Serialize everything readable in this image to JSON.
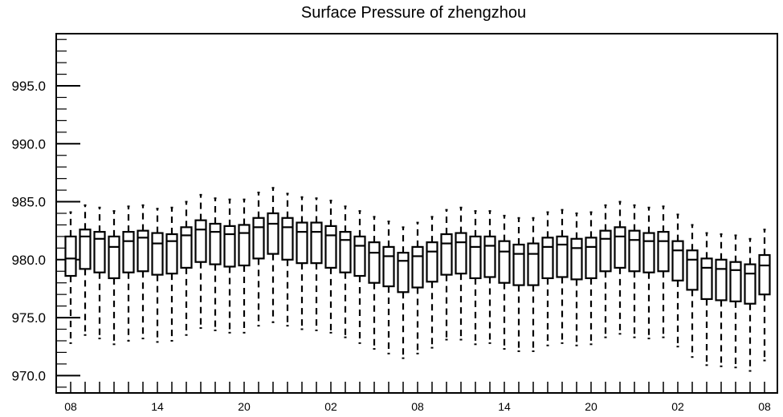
{
  "chart_data": {
    "type": "boxplot",
    "title": "Surface Pressure of zhengzhou",
    "xlabel": "",
    "ylabel": "",
    "ylim": [
      968.5,
      999.5
    ],
    "yticks": [
      970.0,
      975.0,
      980.0,
      985.0,
      990.0,
      995.0
    ],
    "ytick_labels": [
      "970.0",
      "975.0",
      "980.0",
      "985.0",
      "990.0",
      "995.0"
    ],
    "xtick_labels": [
      "08",
      "14",
      "20",
      "02",
      "08",
      "14",
      "20",
      "02",
      "08"
    ],
    "xtick_positions": [
      0,
      6,
      12,
      18,
      24,
      30,
      36,
      42,
      48
    ],
    "boxes": [
      {
        "x": 0,
        "low": 972.8,
        "q1": 978.6,
        "median": 980.1,
        "q3": 982.0,
        "high": 984.1
      },
      {
        "x": 1,
        "low": 973.5,
        "q1": 979.2,
        "median": 982.0,
        "q3": 982.6,
        "high": 984.7
      },
      {
        "x": 2,
        "low": 973.2,
        "q1": 978.9,
        "median": 981.8,
        "q3": 982.4,
        "high": 984.5
      },
      {
        "x": 3,
        "low": 972.7,
        "q1": 978.4,
        "median": 981.1,
        "q3": 982.0,
        "high": 984.2
      },
      {
        "x": 4,
        "low": 973.0,
        "q1": 978.9,
        "median": 981.6,
        "q3": 982.4,
        "high": 984.6
      },
      {
        "x": 5,
        "low": 973.2,
        "q1": 979.0,
        "median": 981.9,
        "q3": 982.5,
        "high": 984.7
      },
      {
        "x": 6,
        "low": 972.9,
        "q1": 978.7,
        "median": 981.4,
        "q3": 982.3,
        "high": 984.4
      },
      {
        "x": 7,
        "low": 973.0,
        "q1": 978.8,
        "median": 981.6,
        "q3": 982.2,
        "high": 984.5
      },
      {
        "x": 8,
        "low": 973.5,
        "q1": 979.3,
        "median": 982.1,
        "q3": 982.8,
        "high": 985.0
      },
      {
        "x": 9,
        "low": 974.1,
        "q1": 979.8,
        "median": 982.6,
        "q3": 983.4,
        "high": 985.6
      },
      {
        "x": 10,
        "low": 973.9,
        "q1": 979.6,
        "median": 982.4,
        "q3": 983.1,
        "high": 985.3
      },
      {
        "x": 11,
        "low": 973.7,
        "q1": 979.4,
        "median": 982.2,
        "q3": 982.9,
        "high": 985.2
      },
      {
        "x": 12,
        "low": 973.7,
        "q1": 979.5,
        "median": 982.3,
        "q3": 983.0,
        "high": 985.2
      },
      {
        "x": 13,
        "low": 974.3,
        "q1": 980.1,
        "median": 982.8,
        "q3": 983.6,
        "high": 985.8
      },
      {
        "x": 14,
        "low": 974.6,
        "q1": 980.5,
        "median": 983.1,
        "q3": 984.0,
        "high": 986.2
      },
      {
        "x": 15,
        "low": 974.3,
        "q1": 980.0,
        "median": 982.8,
        "q3": 983.6,
        "high": 985.7
      },
      {
        "x": 16,
        "low": 974.0,
        "q1": 979.7,
        "median": 982.4,
        "q3": 983.2,
        "high": 985.4
      },
      {
        "x": 17,
        "low": 973.9,
        "q1": 979.7,
        "median": 982.4,
        "q3": 983.2,
        "high": 985.3
      },
      {
        "x": 18,
        "low": 973.7,
        "q1": 979.3,
        "median": 982.1,
        "q3": 982.9,
        "high": 985.1
      },
      {
        "x": 19,
        "low": 973.3,
        "q1": 978.9,
        "median": 981.7,
        "q3": 982.4,
        "high": 984.6
      },
      {
        "x": 20,
        "low": 972.8,
        "q1": 978.6,
        "median": 981.2,
        "q3": 982.0,
        "high": 984.2
      },
      {
        "x": 21,
        "low": 972.3,
        "q1": 978.0,
        "median": 980.6,
        "q3": 981.5,
        "high": 983.7
      },
      {
        "x": 22,
        "low": 971.9,
        "q1": 977.7,
        "median": 980.3,
        "q3": 981.1,
        "high": 983.3
      },
      {
        "x": 23,
        "low": 971.5,
        "q1": 977.2,
        "median": 979.9,
        "q3": 980.6,
        "high": 982.8
      },
      {
        "x": 24,
        "low": 971.9,
        "q1": 977.6,
        "median": 980.3,
        "q3": 981.1,
        "high": 983.2
      },
      {
        "x": 25,
        "low": 972.4,
        "q1": 978.1,
        "median": 980.7,
        "q3": 981.5,
        "high": 983.7
      },
      {
        "x": 26,
        "low": 973.1,
        "q1": 978.7,
        "median": 981.4,
        "q3": 982.2,
        "high": 984.3
      },
      {
        "x": 27,
        "low": 973.1,
        "q1": 978.8,
        "median": 981.5,
        "q3": 982.3,
        "high": 984.5
      },
      {
        "x": 28,
        "low": 972.7,
        "q1": 978.4,
        "median": 981.1,
        "q3": 982.0,
        "high": 984.2
      },
      {
        "x": 29,
        "low": 972.8,
        "q1": 978.5,
        "median": 981.2,
        "q3": 982.0,
        "high": 984.2
      },
      {
        "x": 30,
        "low": 972.3,
        "q1": 978.0,
        "median": 980.7,
        "q3": 981.6,
        "high": 983.8
      },
      {
        "x": 31,
        "low": 972.1,
        "q1": 977.8,
        "median": 980.5,
        "q3": 981.3,
        "high": 983.6
      },
      {
        "x": 32,
        "low": 972.1,
        "q1": 977.8,
        "median": 980.5,
        "q3": 981.4,
        "high": 983.6
      },
      {
        "x": 33,
        "low": 972.6,
        "q1": 978.4,
        "median": 981.1,
        "q3": 981.9,
        "high": 984.1
      },
      {
        "x": 34,
        "low": 972.8,
        "q1": 978.5,
        "median": 981.3,
        "q3": 982.0,
        "high": 984.3
      },
      {
        "x": 35,
        "low": 972.6,
        "q1": 978.3,
        "median": 981.0,
        "q3": 981.8,
        "high": 984.0
      },
      {
        "x": 36,
        "low": 972.7,
        "q1": 978.4,
        "median": 981.1,
        "q3": 981.9,
        "high": 984.1
      },
      {
        "x": 37,
        "low": 973.3,
        "q1": 979.0,
        "median": 981.8,
        "q3": 982.5,
        "high": 984.7
      },
      {
        "x": 38,
        "low": 973.6,
        "q1": 979.3,
        "median": 982.0,
        "q3": 982.8,
        "high": 985.0
      },
      {
        "x": 39,
        "low": 973.3,
        "q1": 979.0,
        "median": 981.7,
        "q3": 982.5,
        "high": 984.7
      },
      {
        "x": 40,
        "low": 973.2,
        "q1": 978.9,
        "median": 981.6,
        "q3": 982.3,
        "high": 984.5
      },
      {
        "x": 41,
        "low": 973.3,
        "q1": 979.0,
        "median": 981.6,
        "q3": 982.4,
        "high": 984.6
      },
      {
        "x": 42,
        "low": 972.5,
        "q1": 978.2,
        "median": 980.8,
        "q3": 981.6,
        "high": 983.9
      },
      {
        "x": 43,
        "low": 971.6,
        "q1": 977.4,
        "median": 980.0,
        "q3": 980.8,
        "high": 983.0
      },
      {
        "x": 44,
        "low": 970.9,
        "q1": 976.6,
        "median": 979.3,
        "q3": 980.1,
        "high": 982.3
      },
      {
        "x": 45,
        "low": 970.8,
        "q1": 976.5,
        "median": 979.2,
        "q3": 980.0,
        "high": 982.2
      },
      {
        "x": 46,
        "low": 970.7,
        "q1": 976.4,
        "median": 979.1,
        "q3": 979.8,
        "high": 982.1
      },
      {
        "x": 47,
        "low": 970.4,
        "q1": 976.2,
        "median": 978.8,
        "q3": 979.6,
        "high": 981.8
      },
      {
        "x": 48,
        "low": 971.3,
        "q1": 977.0,
        "median": 979.5,
        "q3": 980.4,
        "high": 982.6
      }
    ],
    "grid": false,
    "colors": {
      "box": "#000000",
      "background": "#ffffff"
    }
  }
}
